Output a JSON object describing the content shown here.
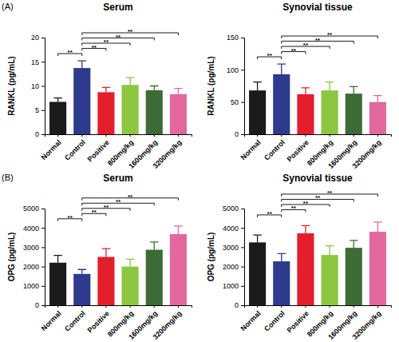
{
  "chart_data": [
    {
      "type": "bar",
      "panel_label": "(A)",
      "title": "Serum",
      "y_label": "RANKL (pg/mL)",
      "categories": [
        "Normal",
        "Control",
        "Positive",
        "800mg/kg",
        "1600mg/kg",
        "3200mg/kg"
      ],
      "values": [
        6.7,
        13.7,
        8.7,
        10.2,
        9.1,
        8.3
      ],
      "errors": [
        0.8,
        1.5,
        1.0,
        1.5,
        0.9,
        1.2
      ],
      "colors": [
        "#1a1a1a",
        "#2e3a8c",
        "#e31e2d",
        "#8dc63f",
        "#3d6b35",
        "#e2689e"
      ],
      "ylim": [
        0,
        20
      ],
      "yticks": [
        0,
        5,
        10,
        15,
        20
      ],
      "significance": [
        {
          "groups": [
            "Normal",
            "Control"
          ],
          "label": "**"
        },
        {
          "groups": [
            "Control",
            "Positive"
          ],
          "label": "**"
        },
        {
          "groups": [
            "Control",
            "800mg/kg"
          ],
          "label": "**"
        },
        {
          "groups": [
            "Control",
            "1600mg/kg"
          ],
          "label": "**"
        },
        {
          "groups": [
            "Control",
            "3200mg/kg"
          ],
          "label": "**"
        }
      ]
    },
    {
      "type": "bar",
      "title": "Synovial tissue",
      "y_label": "RANKL (pg/mL)",
      "categories": [
        "Normal",
        "Control",
        "Positive",
        "800mg/kg",
        "1600mg/kg",
        "3200mg/kg"
      ],
      "values": [
        68,
        93,
        62,
        68,
        63,
        50
      ],
      "errors": [
        13,
        16,
        10,
        13,
        11,
        10
      ],
      "colors": [
        "#1a1a1a",
        "#2e3a8c",
        "#e31e2d",
        "#8dc63f",
        "#3d6b35",
        "#e2689e"
      ],
      "ylim": [
        0,
        150
      ],
      "yticks": [
        0,
        50,
        100,
        150
      ],
      "significance": [
        {
          "groups": [
            "Normal",
            "Control"
          ],
          "label": "**"
        },
        {
          "groups": [
            "Control",
            "Positive"
          ],
          "label": "**"
        },
        {
          "groups": [
            "Control",
            "800mg/kg"
          ],
          "label": "**"
        },
        {
          "groups": [
            "Control",
            "1600mg/kg"
          ],
          "label": "**"
        },
        {
          "groups": [
            "Control",
            "3200mg/kg"
          ],
          "label": "**"
        }
      ]
    },
    {
      "type": "bar",
      "panel_label": "(B)",
      "title": "Serum",
      "y_label": "OPG (pg/mL)",
      "categories": [
        "Normal",
        "Control",
        "Positive",
        "800mg/kg",
        "1600mg/kg",
        "3200mg/kg"
      ],
      "values": [
        2200,
        1620,
        2500,
        2000,
        2870,
        3680
      ],
      "errors": [
        380,
        230,
        430,
        380,
        400,
        420
      ],
      "colors": [
        "#1a1a1a",
        "#2e3a8c",
        "#e31e2d",
        "#8dc63f",
        "#3d6b35",
        "#e2689e"
      ],
      "ylim": [
        0,
        5000
      ],
      "yticks": [
        0,
        1000,
        2000,
        3000,
        4000,
        5000
      ],
      "significance": [
        {
          "groups": [
            "Normal",
            "Control"
          ],
          "label": "**"
        },
        {
          "groups": [
            "Control",
            "Positive"
          ],
          "label": "**"
        },
        {
          "groups": [
            "Control",
            "800mg/kg"
          ],
          "label": "**"
        },
        {
          "groups": [
            "Control",
            "1600mg/kg"
          ],
          "label": "**"
        },
        {
          "groups": [
            "Control",
            "3200mg/kg"
          ],
          "label": "**"
        }
      ]
    },
    {
      "type": "bar",
      "title": "Synovial tissue",
      "y_label": "OPG (pg/mL)",
      "categories": [
        "Normal",
        "Control",
        "Positive",
        "800mg/kg",
        "1600mg/kg",
        "3200mg/kg"
      ],
      "values": [
        3250,
        2270,
        3720,
        2600,
        2970,
        3800
      ],
      "errors": [
        380,
        400,
        400,
        470,
        380,
        500
      ],
      "colors": [
        "#1a1a1a",
        "#2e3a8c",
        "#e31e2d",
        "#8dc63f",
        "#3d6b35",
        "#e2689e"
      ],
      "ylim": [
        0,
        5000
      ],
      "yticks": [
        0,
        1000,
        2000,
        3000,
        4000,
        5000
      ],
      "significance": [
        {
          "groups": [
            "Normal",
            "Control"
          ],
          "label": "**"
        },
        {
          "groups": [
            "Control",
            "Positive"
          ],
          "label": "**"
        },
        {
          "groups": [
            "Control",
            "800mg/kg"
          ],
          "label": "**"
        },
        {
          "groups": [
            "Control",
            "1600mg/kg"
          ],
          "label": "**"
        },
        {
          "groups": [
            "Control",
            "3200mg/kg"
          ],
          "label": "**"
        }
      ]
    }
  ]
}
